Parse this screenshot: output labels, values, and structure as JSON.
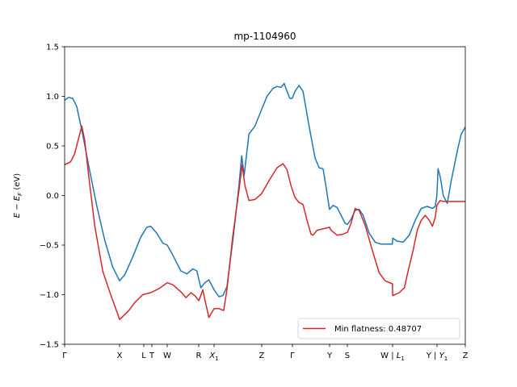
{
  "chart_data": {
    "type": "line",
    "title": "mp-1104960",
    "xlabel": "",
    "ylabel": "E − E_F (eV)",
    "ylabel_parts": {
      "base": "E − E",
      "sub": "F",
      "tail": " (eV)"
    },
    "ylim": [
      -1.5,
      1.5
    ],
    "xlim": [
      0,
      1
    ],
    "yticks": [
      -1.5,
      -1.0,
      -0.5,
      0.0,
      0.5,
      1.0,
      1.5
    ],
    "ytick_labels": [
      "−1.5",
      "−1.0",
      "−0.5",
      "0.0",
      "0.5",
      "1.0",
      "1.5"
    ],
    "xticks": [
      {
        "pos": 0.0,
        "label": "Γ"
      },
      {
        "pos": 0.1371,
        "label": "X"
      },
      {
        "pos": 0.1976,
        "label": "L"
      },
      {
        "pos": 0.2177,
        "label": "T"
      },
      {
        "pos": 0.256,
        "label": "W"
      },
      {
        "pos": 0.3347,
        "label": "R"
      },
      {
        "pos": 0.373,
        "label": "X",
        "sub": "1"
      },
      {
        "pos": 0.4919,
        "label": "Z"
      },
      {
        "pos": 0.5685,
        "label": "Γ"
      },
      {
        "pos": 0.6613,
        "label": "Y"
      },
      {
        "pos": 0.7056,
        "label": "S"
      },
      {
        "pos": 0.8185,
        "label": "W | L",
        "sub": "1"
      },
      {
        "pos": 0.9294,
        "label": "Y | Y",
        "sub": "1"
      },
      {
        "pos": 1.0,
        "label": "Z"
      }
    ],
    "grid": false,
    "legend_placement": "lower-right",
    "series": [
      {
        "name": "",
        "color": "#1f77b4",
        "points": [
          [
            0.0,
            0.96
          ],
          [
            0.01,
            0.99
          ],
          [
            0.02,
            0.98
          ],
          [
            0.03,
            0.9
          ],
          [
            0.045,
            0.62
          ],
          [
            0.06,
            0.3
          ],
          [
            0.08,
            -0.1
          ],
          [
            0.1,
            -0.45
          ],
          [
            0.12,
            -0.72
          ],
          [
            0.137,
            -0.86
          ],
          [
            0.15,
            -0.8
          ],
          [
            0.17,
            -0.62
          ],
          [
            0.19,
            -0.42
          ],
          [
            0.205,
            -0.32
          ],
          [
            0.215,
            -0.31
          ],
          [
            0.23,
            -0.38
          ],
          [
            0.245,
            -0.48
          ],
          [
            0.256,
            -0.5
          ],
          [
            0.27,
            -0.6
          ],
          [
            0.29,
            -0.76
          ],
          [
            0.305,
            -0.79
          ],
          [
            0.32,
            -0.74
          ],
          [
            0.33,
            -0.76
          ],
          [
            0.34,
            -0.93
          ],
          [
            0.35,
            -0.88
          ],
          [
            0.36,
            -0.85
          ],
          [
            0.373,
            -0.95
          ],
          [
            0.385,
            -1.02
          ],
          [
            0.395,
            -1.01
          ],
          [
            0.405,
            -0.92
          ],
          [
            0.42,
            -0.45
          ],
          [
            0.435,
            0.1
          ],
          [
            0.442,
            0.4
          ],
          [
            0.448,
            0.2
          ],
          [
            0.46,
            0.62
          ],
          [
            0.475,
            0.7
          ],
          [
            0.492,
            0.87
          ],
          [
            0.505,
            1.0
          ],
          [
            0.52,
            1.08
          ],
          [
            0.53,
            1.1
          ],
          [
            0.54,
            1.09
          ],
          [
            0.548,
            1.13
          ],
          [
            0.555,
            1.05
          ],
          [
            0.562,
            0.98
          ],
          [
            0.568,
            0.98
          ],
          [
            0.575,
            1.05
          ],
          [
            0.585,
            1.11
          ],
          [
            0.595,
            1.05
          ],
          [
            0.61,
            0.7
          ],
          [
            0.625,
            0.38
          ],
          [
            0.635,
            0.28
          ],
          [
            0.645,
            0.27
          ],
          [
            0.65,
            0.15
          ],
          [
            0.661,
            -0.14
          ],
          [
            0.67,
            -0.1
          ],
          [
            0.68,
            -0.12
          ],
          [
            0.69,
            -0.2
          ],
          [
            0.7,
            -0.28
          ],
          [
            0.706,
            -0.29
          ],
          [
            0.715,
            -0.24
          ],
          [
            0.725,
            -0.15
          ],
          [
            0.735,
            -0.14
          ],
          [
            0.745,
            -0.2
          ],
          [
            0.76,
            -0.38
          ],
          [
            0.775,
            -0.47
          ],
          [
            0.79,
            -0.49
          ],
          [
            0.805,
            -0.49
          ],
          [
            0.818,
            -0.49
          ],
          [
            0.819,
            -0.43
          ],
          [
            0.83,
            -0.46
          ],
          [
            0.845,
            -0.47
          ],
          [
            0.86,
            -0.4
          ],
          [
            0.875,
            -0.25
          ],
          [
            0.89,
            -0.13
          ],
          [
            0.905,
            -0.11
          ],
          [
            0.918,
            -0.13
          ],
          [
            0.925,
            -0.11
          ],
          [
            0.929,
            0.0
          ],
          [
            0.932,
            0.27
          ],
          [
            0.938,
            0.18
          ],
          [
            0.945,
            0.0
          ],
          [
            0.955,
            -0.08
          ],
          [
            0.965,
            0.15
          ],
          [
            0.98,
            0.45
          ],
          [
            0.99,
            0.62
          ],
          [
            1.0,
            0.69
          ]
        ]
      },
      {
        "name": "Min flatness: 0.48707",
        "color": "#d62728",
        "points": [
          [
            0.0,
            0.31
          ],
          [
            0.015,
            0.34
          ],
          [
            0.025,
            0.42
          ],
          [
            0.035,
            0.58
          ],
          [
            0.043,
            0.7
          ],
          [
            0.05,
            0.56
          ],
          [
            0.06,
            0.2
          ],
          [
            0.075,
            -0.3
          ],
          [
            0.095,
            -0.76
          ],
          [
            0.115,
            -1.0
          ],
          [
            0.133,
            -1.2
          ],
          [
            0.137,
            -1.25
          ],
          [
            0.145,
            -1.22
          ],
          [
            0.16,
            -1.16
          ],
          [
            0.175,
            -1.08
          ],
          [
            0.195,
            -1.0
          ],
          [
            0.215,
            -0.98
          ],
          [
            0.235,
            -0.94
          ],
          [
            0.256,
            -0.88
          ],
          [
            0.27,
            -0.9
          ],
          [
            0.29,
            -0.97
          ],
          [
            0.303,
            -1.03
          ],
          [
            0.315,
            -0.98
          ],
          [
            0.325,
            -1.01
          ],
          [
            0.335,
            -1.06
          ],
          [
            0.345,
            -0.95
          ],
          [
            0.35,
            -1.05
          ],
          [
            0.36,
            -1.23
          ],
          [
            0.373,
            -1.14
          ],
          [
            0.385,
            -1.14
          ],
          [
            0.397,
            -1.16
          ],
          [
            0.405,
            -0.95
          ],
          [
            0.42,
            -0.4
          ],
          [
            0.435,
            0.05
          ],
          [
            0.443,
            0.31
          ],
          [
            0.45,
            0.1
          ],
          [
            0.46,
            -0.05
          ],
          [
            0.475,
            -0.04
          ],
          [
            0.492,
            0.02
          ],
          [
            0.51,
            0.15
          ],
          [
            0.53,
            0.28
          ],
          [
            0.545,
            0.32
          ],
          [
            0.555,
            0.26
          ],
          [
            0.565,
            0.1
          ],
          [
            0.575,
            -0.02
          ],
          [
            0.585,
            -0.07
          ],
          [
            0.595,
            -0.09
          ],
          [
            0.605,
            -0.25
          ],
          [
            0.615,
            -0.39
          ],
          [
            0.62,
            -0.4
          ],
          [
            0.63,
            -0.35
          ],
          [
            0.661,
            -0.32
          ],
          [
            0.665,
            -0.35
          ],
          [
            0.68,
            -0.4
          ],
          [
            0.695,
            -0.39
          ],
          [
            0.706,
            -0.37
          ],
          [
            0.715,
            -0.28
          ],
          [
            0.725,
            -0.13
          ],
          [
            0.735,
            -0.15
          ],
          [
            0.75,
            -0.3
          ],
          [
            0.77,
            -0.58
          ],
          [
            0.785,
            -0.78
          ],
          [
            0.8,
            -0.86
          ],
          [
            0.818,
            -0.89
          ],
          [
            0.819,
            -1.01
          ],
          [
            0.835,
            -0.98
          ],
          [
            0.848,
            -0.93
          ],
          [
            0.855,
            -0.8
          ],
          [
            0.87,
            -0.55
          ],
          [
            0.88,
            -0.35
          ],
          [
            0.89,
            -0.25
          ],
          [
            0.9,
            -0.2
          ],
          [
            0.91,
            -0.25
          ],
          [
            0.918,
            -0.31
          ],
          [
            0.925,
            -0.22
          ],
          [
            0.929,
            -0.1
          ],
          [
            0.937,
            -0.05
          ],
          [
            0.945,
            -0.06
          ],
          [
            1.0,
            -0.06
          ]
        ]
      }
    ]
  }
}
